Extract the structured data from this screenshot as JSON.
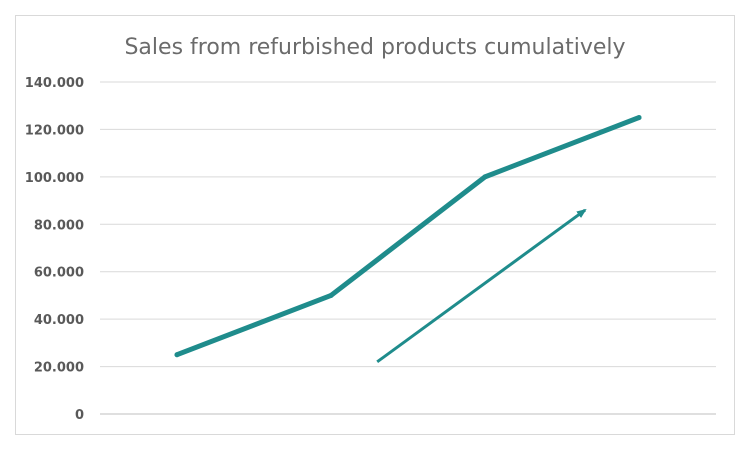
{
  "chart_data": {
    "type": "line",
    "title": "Sales from refurbished products cumulatively",
    "xlabel": "",
    "ylabel": "",
    "ylim": [
      0,
      140000
    ],
    "yticks": [
      0,
      20000,
      40000,
      60000,
      80000,
      100000,
      120000,
      140000
    ],
    "ytick_labels": [
      "0",
      "20.000",
      "40.000",
      "60.000",
      "80.000",
      "100.000",
      "120.000",
      "140.000"
    ],
    "categories": [
      "",
      "",
      "",
      ""
    ],
    "series": [
      {
        "values": [
          25000,
          50000,
          100000,
          125000
        ],
        "color": "#1f8c8c"
      }
    ],
    "grid": true,
    "legend": "none",
    "annotations": [
      {
        "type": "arrow",
        "from": {
          "x": 1.3,
          "y": 22000
        },
        "to": {
          "x": 2.65,
          "y": 86000
        },
        "color": "#1f8c8c"
      }
    ]
  }
}
